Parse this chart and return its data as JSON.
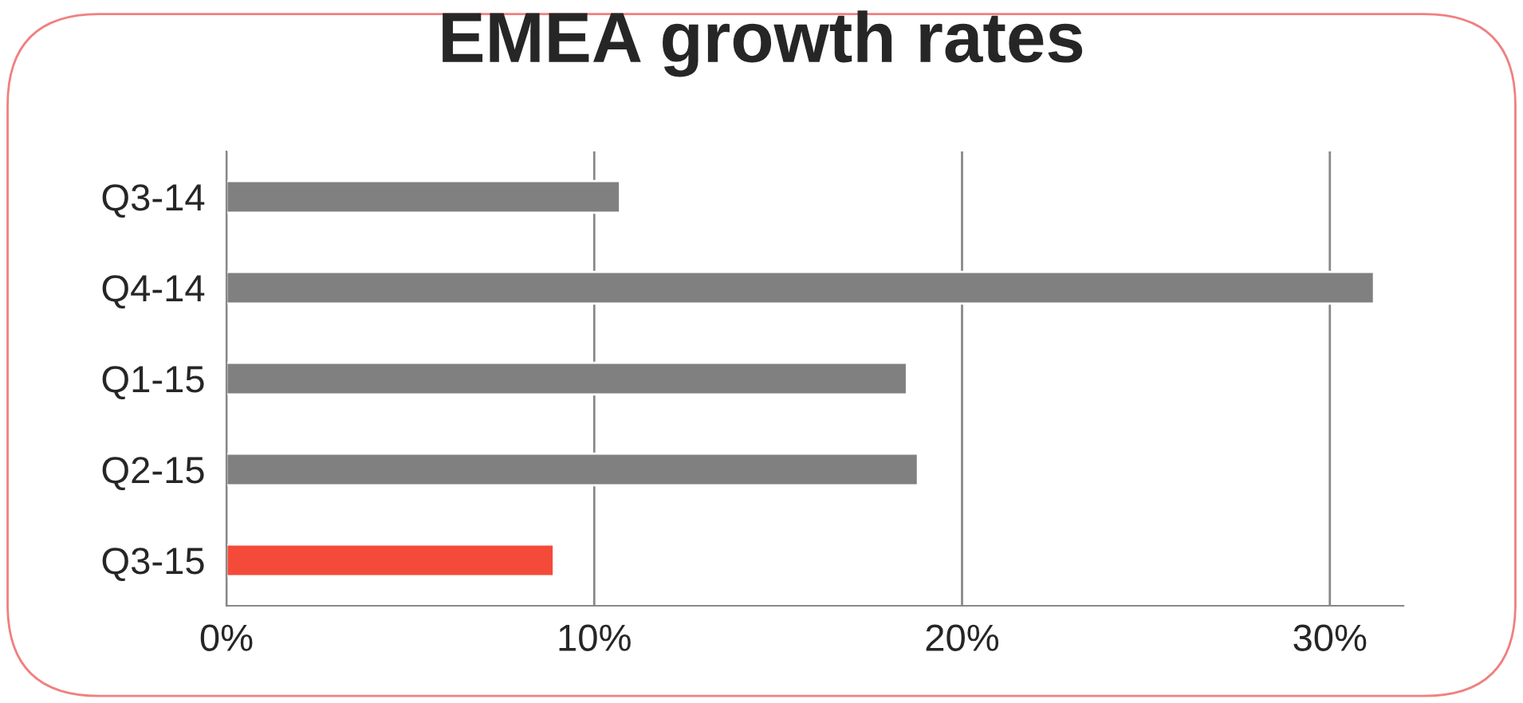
{
  "chart_data": {
    "type": "bar",
    "orientation": "horizontal",
    "title": "EMEA growth rates",
    "categories": [
      "Q3-14",
      "Q4-14",
      "Q1-15",
      "Q2-15",
      "Q3-15"
    ],
    "values": [
      10.7,
      31.2,
      18.5,
      18.8,
      8.9
    ],
    "colors": [
      "#808080",
      "#808080",
      "#808080",
      "#808080",
      "#f44a3a"
    ],
    "xlim": [
      0,
      32
    ],
    "xticks": [
      {
        "value": 0,
        "label": "0%"
      },
      {
        "value": 10,
        "label": "10%"
      },
      {
        "value": 20,
        "label": "20%"
      },
      {
        "value": 30,
        "label": "30%"
      }
    ],
    "grid": "x"
  }
}
